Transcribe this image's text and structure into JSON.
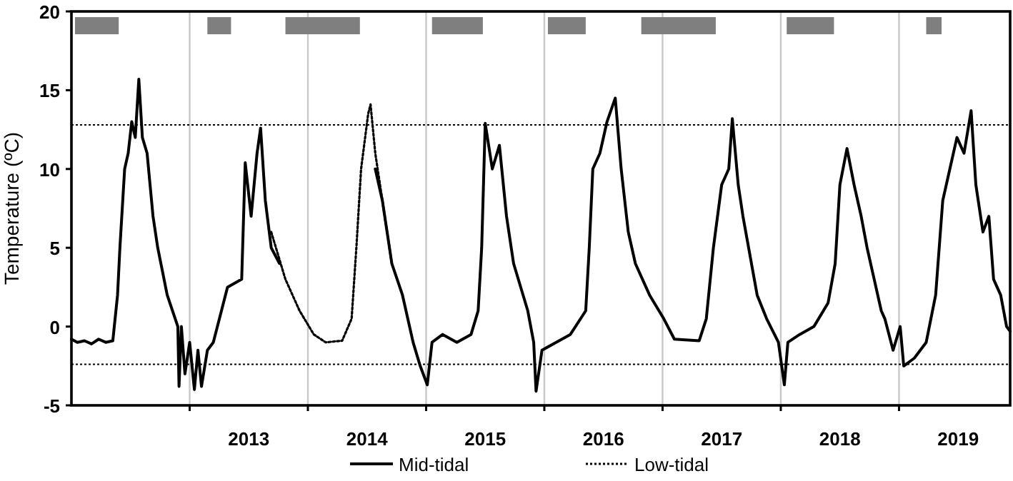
{
  "chart_data": {
    "type": "line",
    "ylabel": "Temperature (ºC)",
    "xlim": [
      2012,
      2019.94
    ],
    "xticks": [
      {
        "value": 2013,
        "label": null
      },
      {
        "value": 2014,
        "label": null
      },
      {
        "value": 2015,
        "label": null
      },
      {
        "value": 2016,
        "label": null
      },
      {
        "value": 2017,
        "label": null
      },
      {
        "value": 2018,
        "label": null
      },
      {
        "value": 2019,
        "label": null
      },
      {
        "value": 2013.5,
        "label": "2013"
      },
      {
        "value": 2014.5,
        "label": "2014"
      },
      {
        "value": 2015.5,
        "label": "2015"
      },
      {
        "value": 2016.5,
        "label": "2016"
      },
      {
        "value": 2017.5,
        "label": "2017"
      },
      {
        "value": 2018.5,
        "label": "2018"
      },
      {
        "value": 2019.5,
        "label": "2019"
      }
    ],
    "ylim": [
      -5,
      20
    ],
    "yticks": [
      -5,
      0,
      5,
      10,
      15,
      20
    ],
    "grid": "x",
    "legend": "bottom",
    "series": [
      {
        "name": "Mid-tidal",
        "color": "#000000",
        "line_style": "solid",
        "x": [
          2012.0,
          2012.05,
          2012.11,
          2012.17,
          2012.23,
          2012.29,
          2012.35,
          2012.39,
          2012.41,
          2012.45,
          2012.48,
          2012.51,
          2012.54,
          2012.57,
          2012.6,
          2012.64,
          2012.69,
          2012.73,
          2012.81,
          2012.9,
          2012.91,
          2012.93,
          2012.96,
          2013.0,
          2013.04,
          2013.07,
          2013.1,
          2013.15,
          2013.2,
          2013.32,
          2013.44,
          2013.47,
          2013.52,
          2013.57,
          2013.6,
          2013.64,
          2013.69,
          2013.76,
          2013.8,
          2014.57,
          2014.63,
          2014.71,
          2014.8,
          2014.89,
          2014.95,
          2015.01,
          2015.05,
          2015.14,
          2015.26,
          2015.38,
          2015.44,
          2015.47,
          2015.5,
          2015.56,
          2015.62,
          2015.68,
          2015.74,
          2015.86,
          2015.91,
          2015.93,
          2015.98,
          2016.1,
          2016.22,
          2016.35,
          2016.38,
          2016.41,
          2016.47,
          2016.53,
          2016.6,
          2016.65,
          2016.71,
          2016.77,
          2016.89,
          2017.01,
          2017.1,
          2017.31,
          2017.37,
          2017.43,
          2017.5,
          2017.56,
          2017.59,
          2017.64,
          2017.68,
          2017.8,
          2017.88,
          2017.98,
          2018.03,
          2018.06,
          2018.16,
          2018.28,
          2018.4,
          2018.46,
          2018.5,
          2018.56,
          2018.62,
          2018.68,
          2018.73,
          2018.79,
          2018.85,
          2018.88,
          2018.95,
          2019.01,
          2019.04,
          2019.13,
          2019.23,
          2019.31,
          2019.37,
          2019.43,
          2019.49,
          2019.55,
          2019.61,
          2019.65,
          2019.71,
          2019.76,
          2019.8,
          2019.86,
          2019.91,
          2019.94
        ],
        "values": [
          -0.8,
          -1,
          -0.9,
          -1.1,
          -0.8,
          -1,
          -0.9,
          2,
          5,
          10,
          11,
          13,
          12,
          15.7,
          12,
          11,
          7,
          5,
          2,
          0,
          -3.8,
          0,
          -3,
          -1,
          -4,
          -1.5,
          -3.8,
          -1.5,
          -1,
          2.5,
          3,
          10.4,
          7,
          11,
          12.6,
          8,
          5,
          4,
          null,
          10,
          8,
          4,
          2,
          -1,
          -2.5,
          -3.7,
          -1,
          -0.5,
          -1,
          -0.5,
          1,
          5,
          12.9,
          10,
          11.5,
          7,
          4,
          1,
          -1,
          -4.1,
          -1.5,
          -1,
          -0.5,
          1,
          5,
          10,
          11,
          13,
          14.5,
          10,
          6,
          4,
          2,
          0.5,
          -0.8,
          -0.9,
          0.5,
          5,
          9,
          10,
          13.2,
          9,
          7,
          2,
          0.5,
          -1,
          -3.7,
          -1,
          -0.5,
          0,
          1.5,
          4,
          9,
          11.3,
          9,
          7,
          5,
          3,
          1,
          0.5,
          -1.5,
          0,
          -2.5,
          -2,
          -1,
          2,
          8,
          10,
          12,
          11,
          13.7,
          9,
          6,
          7,
          3,
          2,
          0,
          -0.3
        ]
      },
      {
        "name": "Low-tidal",
        "color": "#000000",
        "line_style": "dotted",
        "x": [
          2013.69,
          2013.81,
          2013.93,
          2014.05,
          2014.15,
          2014.29,
          2014.37,
          2014.41,
          2014.45,
          2014.51,
          2014.53,
          2014.57,
          2014.63,
          2014.71
        ],
        "values": [
          6,
          3,
          1,
          -0.5,
          -1,
          -0.9,
          0.5,
          5,
          10,
          13.5,
          14.1,
          11,
          8,
          4
        ]
      }
    ],
    "ref_lines": [
      {
        "axis": "y",
        "value": 12.8,
        "line_style": "dotted",
        "color": "#000000"
      },
      {
        "axis": "y",
        "value": -2.4,
        "line_style": "dotted",
        "color": "#000000"
      }
    ],
    "bands": [
      {
        "axis": "x",
        "from": 2012.03,
        "to": 2012.4,
        "color": "#7f7f7f"
      },
      {
        "axis": "x",
        "from": 2013.15,
        "to": 2013.35,
        "color": "#7f7f7f"
      },
      {
        "axis": "x",
        "from": 2013.81,
        "to": 2014.44,
        "color": "#7f7f7f"
      },
      {
        "axis": "x",
        "from": 2015.05,
        "to": 2015.48,
        "color": "#7f7f7f"
      },
      {
        "axis": "x",
        "from": 2016.03,
        "to": 2016.35,
        "color": "#7f7f7f"
      },
      {
        "axis": "x",
        "from": 2016.82,
        "to": 2017.45,
        "color": "#7f7f7f"
      },
      {
        "axis": "x",
        "from": 2018.05,
        "to": 2018.45,
        "color": "#7f7f7f"
      },
      {
        "axis": "x",
        "from": 2019.23,
        "to": 2019.36,
        "color": "#7f7f7f"
      }
    ]
  }
}
